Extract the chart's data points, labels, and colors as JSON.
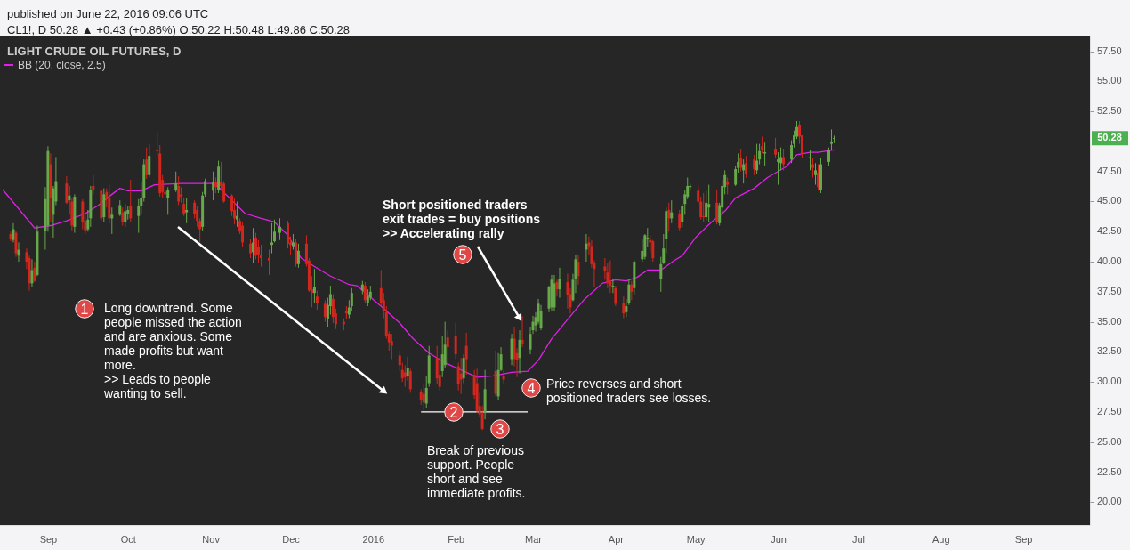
{
  "chart_data": {
    "type": "candlestick",
    "title": "LIGHT CRUDE OIL FUTURES, D",
    "annotations": [
      "published on June 22, 2016 09:06 UTC",
      "CL1!, D  50.28 ▲ +0.43 (+0.86%)  O:50.22  H:50.48  L:49.86  C:50.28",
      "1",
      "Long downtrend. Some\npeople missed the action\nand are anxious. Some\nmade profits but want\nmore.\n>> Leads to people\nwanting to sell.",
      "2",
      "3",
      "Break of previous\nsupport. People\nshort and see\nimmediate profits.",
      "4",
      "Price reverses and short\npositioned traders see losses.",
      {
        "text": "5",
        "x": "2016-02-25",
        "y": 35.3
      },
      "Short positioned traders\nexit trades = buy positions\n>> Accelerating rally",
      {
        "text": "50.28",
        "y": 50.28
      }
    ],
    "colors": [
      "#d3261d",
      "#67a84a",
      "#d3261d",
      "#67a84a",
      "#d3261d",
      "#d3261d",
      "#67a84a",
      "#d3261d",
      "#67a84a",
      "#67a84a",
      "#67a84a",
      "#d3261d",
      "#67a84a",
      "#67a84a",
      "#d3261d",
      "#67a84a",
      "#d3261d",
      "#67a84a",
      "#d3261d",
      "#d3261d",
      "#67a84a",
      "#67a84a",
      "#d3261d",
      "#d3261d",
      "#67a84a",
      "#d3261d",
      "#d3261d",
      "#67a84a",
      "#67a84a",
      "#d3261d",
      "#67a84a",
      "#67a84a",
      "#d3261d",
      "#67a84a",
      "#67a84a",
      "#67a84a",
      "#d3261d",
      "#67a84a",
      "#d3261d",
      "#d3261d",
      "#d3261d",
      "#d3261d",
      "#67a84a",
      "#67a84a",
      "#d3261d",
      "#d3261d",
      "#d3261d",
      "#67a84a",
      "#d3261d",
      "#d3261d",
      "#d3261d",
      "#67a84a",
      "#67a84a",
      "#67a84a",
      "#d3261d",
      "#67a84a",
      "#d3261d",
      "#d3261d",
      "#d3261d",
      "#d3261d",
      "#67a84a",
      "#d3261d",
      "#d3261d",
      "#d3261d",
      "#67a84a",
      "#d3261d",
      "#d3261d",
      "#d3261d",
      "#d3261d",
      "#67a84a",
      "#67a84a",
      "#67a84a",
      "#d3261d",
      "#d3261d",
      "#67a84a",
      "#d3261d",
      "#67a84a",
      "#d3261d",
      "#d3261d",
      "#d3261d",
      "#67a84a",
      "#d3261d",
      "#d3261d",
      "#67a84a",
      "#67a84a",
      "#d3261d",
      "#d3261d",
      "#d3261d",
      "#d3261d",
      "#67a84a",
      "#67a84a",
      "#67a84a",
      "#d3261d",
      "#67a84a",
      "#67a84a",
      "#d3261d",
      "#d3261d",
      "#d3261d",
      "#d3261d",
      "#d3261d",
      "#d3261d",
      "#d3261d",
      "#d3261d",
      "#67a84a",
      "#d3261d",
      "#d3261d",
      "#d3261d",
      "#67a84a",
      "#67a84a",
      "#d3261d",
      "#d3261d",
      "#67a84a",
      "#67a84a",
      "#d3261d",
      "#d3261d",
      "#d3261d",
      "#d3261d",
      "#67a84a",
      "#d3261d",
      "#d3261d",
      "#d3261d",
      "#d3261d",
      "#d3261d",
      "#67a84a",
      "#d3261d",
      "#67a84a",
      "#67a84a",
      "#d3261d",
      "#67a84a",
      "#d3261d",
      "#d3261d",
      "#67a84a",
      "#d3261d",
      "#67a84a",
      "#67a84a",
      "#67a84a",
      "#67a84a",
      "#67a84a",
      "#67a84a",
      "#67a84a",
      "#67a84a",
      "#d3261d",
      "#67a84a",
      "#d3261d",
      "#d3261d",
      "#67a84a",
      "#67a84a",
      "#d3261d",
      "#67a84a",
      "#d3261d",
      "#d3261d",
      "#d3261d",
      "#d3261d",
      "#d3261d",
      "#d3261d",
      "#67a84a",
      "#d3261d",
      "#d3261d",
      "#67a84a",
      "#67a84a",
      "#d3261d",
      "#67a84a",
      "#67a84a",
      "#67a84a",
      "#67a84a",
      "#d3261d",
      "#d3261d",
      "#67a84a",
      "#67a84a",
      "#67a84a",
      "#d3261d",
      "#67a84a",
      "#d3261d",
      "#67a84a",
      "#67a84a",
      "#67a84a",
      "#67a84a",
      "#d3261d",
      "#d3261d",
      "#d3261d",
      "#67a84a",
      "#67a84a",
      "#d3261d",
      "#67a84a",
      "#67a84a",
      "#67a84a",
      "#d3261d",
      "#67a84a",
      "#67a84a",
      "#d3261d",
      "#67a84a",
      "#d3261d",
      "#d3261d",
      "#67a84a",
      "#67a84a",
      "#d3261d",
      "#67a84a",
      "#d3261d",
      "#67a84a",
      "#67a84a",
      "#d3261d",
      "#67a84a",
      "#67a84a",
      "#67a84a",
      "#d3261d",
      "#d3261d",
      "#67a84a",
      "#d3261d",
      "#67a84a",
      "#d3261d",
      "#67a84a",
      "#67a84a",
      "#67a84a",
      "#67a84a"
    ],
    "x": [
      "2015-08-18",
      "2015-08-19",
      "2015-08-20",
      "2015-08-21",
      "2015-08-24",
      "2015-08-25",
      "2015-08-26",
      "2015-08-27",
      "2015-08-28",
      "2015-08-31",
      "2015-09-01",
      "2015-09-02",
      "2015-09-03",
      "2015-09-04",
      "2015-09-08",
      "2015-09-09",
      "2015-09-10",
      "2015-09-11",
      "2015-09-14",
      "2015-09-15",
      "2015-09-16",
      "2015-09-17",
      "2015-09-18",
      "2015-09-21",
      "2015-09-22",
      "2015-09-23",
      "2015-09-24",
      "2015-09-25",
      "2015-09-28",
      "2015-09-29",
      "2015-09-30",
      "2015-10-01",
      "2015-10-02",
      "2015-10-05",
      "2015-10-06",
      "2015-10-07",
      "2015-10-08",
      "2015-10-09",
      "2015-10-12",
      "2015-10-13",
      "2015-10-14",
      "2015-10-15",
      "2015-10-16",
      "2015-10-19",
      "2015-10-20",
      "2015-10-21",
      "2015-10-22",
      "2015-10-23",
      "2015-10-26",
      "2015-10-27",
      "2015-10-28",
      "2015-10-29",
      "2015-10-30",
      "2015-11-02",
      "2015-11-03",
      "2015-11-04",
      "2015-11-05",
      "2015-11-06",
      "2015-11-09",
      "2015-11-10",
      "2015-11-11",
      "2015-11-12",
      "2015-11-13",
      "2015-11-16",
      "2015-11-17",
      "2015-11-18",
      "2015-11-19",
      "2015-11-20",
      "2015-11-23",
      "2015-11-24",
      "2015-11-25",
      "2015-11-27",
      "2015-11-30",
      "2015-12-01",
      "2015-12-02",
      "2015-12-03",
      "2015-12-04",
      "2015-12-07",
      "2015-12-08",
      "2015-12-09",
      "2015-12-10",
      "2015-12-11",
      "2015-12-14",
      "2015-12-15",
      "2015-12-16",
      "2015-12-17",
      "2015-12-18",
      "2015-12-21",
      "2015-12-22",
      "2015-12-23",
      "2015-12-24",
      "2015-12-28",
      "2015-12-29",
      "2015-12-30",
      "2015-12-31",
      "2016-01-04",
      "2016-01-05",
      "2016-01-06",
      "2016-01-07",
      "2016-01-08",
      "2016-01-11",
      "2016-01-12",
      "2016-01-13",
      "2016-01-14",
      "2016-01-15",
      "2016-01-19",
      "2016-01-20",
      "2016-01-21",
      "2016-01-22",
      "2016-01-25",
      "2016-01-26",
      "2016-01-27",
      "2016-01-28",
      "2016-01-29",
      "2016-02-01",
      "2016-02-02",
      "2016-02-03",
      "2016-02-04",
      "2016-02-05",
      "2016-02-08",
      "2016-02-09",
      "2016-02-10",
      "2016-02-11",
      "2016-02-12",
      "2016-02-16",
      "2016-02-17",
      "2016-02-18",
      "2016-02-19",
      "2016-02-22",
      "2016-02-23",
      "2016-02-24",
      "2016-02-25",
      "2016-02-26",
      "2016-02-29",
      "2016-03-01",
      "2016-03-02",
      "2016-03-03",
      "2016-03-04",
      "2016-03-07",
      "2016-03-08",
      "2016-03-09",
      "2016-03-10",
      "2016-03-11",
      "2016-03-14",
      "2016-03-15",
      "2016-03-16",
      "2016-03-17",
      "2016-03-18",
      "2016-03-21",
      "2016-03-22",
      "2016-03-23",
      "2016-03-24",
      "2016-03-28",
      "2016-03-29",
      "2016-03-30",
      "2016-03-31",
      "2016-04-01",
      "2016-04-04",
      "2016-04-05",
      "2016-04-06",
      "2016-04-07",
      "2016-04-08",
      "2016-04-11",
      "2016-04-12",
      "2016-04-13",
      "2016-04-14",
      "2016-04-15",
      "2016-04-18",
      "2016-04-19",
      "2016-04-20",
      "2016-04-21",
      "2016-04-22",
      "2016-04-25",
      "2016-04-26",
      "2016-04-27",
      "2016-04-28",
      "2016-04-29",
      "2016-05-02",
      "2016-05-03",
      "2016-05-04",
      "2016-05-05",
      "2016-05-06",
      "2016-05-09",
      "2016-05-10",
      "2016-05-11",
      "2016-05-12",
      "2016-05-13",
      "2016-05-16",
      "2016-05-17",
      "2016-05-18",
      "2016-05-19",
      "2016-05-20",
      "2016-05-23",
      "2016-05-24",
      "2016-05-25",
      "2016-05-26",
      "2016-05-27",
      "2016-05-31",
      "2016-06-01",
      "2016-06-02",
      "2016-06-03",
      "2016-06-06",
      "2016-06-07",
      "2016-06-08",
      "2016-06-09",
      "2016-06-10",
      "2016-06-13",
      "2016-06-14",
      "2016-06-15",
      "2016-06-16",
      "2016-06-17",
      "2016-06-20",
      "2016-06-21",
      "2016-06-22"
    ],
    "ohlc": [
      [
        42.3,
        42.5,
        41.7,
        41.9
      ],
      [
        41.8,
        43.2,
        41.6,
        42.7
      ],
      [
        42.4,
        42.6,
        40.4,
        40.7
      ],
      [
        40.5,
        41.6,
        40.0,
        41.0
      ],
      [
        40.8,
        41.1,
        39.4,
        40.0
      ],
      [
        40.3,
        40.5,
        37.6,
        38.2
      ],
      [
        38.2,
        40.2,
        37.9,
        39.3
      ],
      [
        39.5,
        40.0,
        38.3,
        38.4
      ],
      [
        38.9,
        43.0,
        38.8,
        42.5
      ],
      [
        42.6,
        46.2,
        41.0,
        45.2
      ],
      [
        43.0,
        49.6,
        42.5,
        49.2
      ],
      [
        48.1,
        49.0,
        43.3,
        45.3
      ],
      [
        43.9,
        46.3,
        42.0,
        46.1
      ],
      [
        45.0,
        48.7,
        44.7,
        46.7
      ],
      [
        46.5,
        47.1,
        44.8,
        44.9
      ],
      [
        45.1,
        46.3,
        43.9,
        45.5
      ],
      [
        45.0,
        45.3,
        42.6,
        43.0
      ],
      [
        42.9,
        45.6,
        42.4,
        45.4
      ],
      [
        45.0,
        45.2,
        42.7,
        43.3
      ],
      [
        43.4,
        43.9,
        42.3,
        42.6
      ],
      [
        42.7,
        44.3,
        42.5,
        43.5
      ],
      [
        43.6,
        46.3,
        42.9,
        46.0
      ],
      [
        46.3,
        47.2,
        45.6,
        46.0
      ],
      [
        45.9,
        46.0,
        43.4,
        43.6
      ],
      [
        43.7,
        46.1,
        43.3,
        45.6
      ],
      [
        45.8,
        46.1,
        44.5,
        45.2
      ],
      [
        45.3,
        46.4,
        43.2,
        43.6
      ],
      [
        43.6,
        44.5,
        42.3,
        43.9
      ],
      [
        43.9,
        45.1,
        43.8,
        44.7
      ],
      [
        44.1,
        44.5,
        43.0,
        43.3
      ],
      [
        43.3,
        44.8,
        42.9,
        44.2
      ],
      [
        44.0,
        44.6,
        43.5,
        44.3
      ],
      [
        44.6,
        46.8,
        43.3,
        43.6
      ],
      [
        43.8,
        45.2,
        42.4,
        44.6
      ],
      [
        44.6,
        46.6,
        44.0,
        45.3
      ],
      [
        45.3,
        48.5,
        45.0,
        48.1
      ],
      [
        48.5,
        49.5,
        46.9,
        47.2
      ],
      [
        47.2,
        49.8,
        47.0,
        48.8
      ],
      [
        49.3,
        50.8,
        48.8,
        49.2
      ],
      [
        49.0,
        49.7,
        45.4,
        45.7
      ],
      [
        46.8,
        47.2,
        45.3,
        45.8
      ],
      [
        45.8,
        46.0,
        45.1,
        45.6
      ],
      [
        45.3,
        46.2,
        43.9,
        46.0
      ],
      [
        46.0,
        47.5,
        45.8,
        46.5
      ],
      [
        46.3,
        47.1,
        44.7,
        45.0
      ],
      [
        45.6,
        46.2,
        44.9,
        45.4
      ],
      [
        44.8,
        45.3,
        43.8,
        44.0
      ],
      [
        44.1,
        45.3,
        43.2,
        44.3
      ],
      [
        44.9,
        45.1,
        43.6,
        44.0
      ],
      [
        44.3,
        44.6,
        42.9,
        43.4
      ],
      [
        43.4,
        43.6,
        41.6,
        42.7
      ],
      [
        42.9,
        45.8,
        42.6,
        45.5
      ],
      [
        45.6,
        46.9,
        45.4,
        46.7
      ],
      [
        45.9,
        47.5,
        45.1,
        46.6
      ],
      [
        46.6,
        47.0,
        45.7,
        46.2
      ],
      [
        46.0,
        48.4,
        45.7,
        47.9
      ],
      [
        46.6,
        48.3,
        45.9,
        46.3
      ],
      [
        46.5,
        46.7,
        44.9,
        45.0
      ],
      [
        45.5,
        45.6,
        43.8,
        44.2
      ],
      [
        44.3,
        45.3,
        43.1,
        43.6
      ],
      [
        43.5,
        45.0,
        42.9,
        43.8
      ],
      [
        43.4,
        43.6,
        42.3,
        42.5
      ],
      [
        43.0,
        43.3,
        41.2,
        41.6
      ],
      [
        41.5,
        41.9,
        40.3,
        40.7
      ],
      [
        40.8,
        42.8,
        39.9,
        41.6
      ],
      [
        42.0,
        42.4,
        40.2,
        40.5
      ],
      [
        41.2,
        41.8,
        39.9,
        40.6
      ],
      [
        40.6,
        41.4,
        39.6,
        40.3
      ],
      [
        40.3,
        41.0,
        38.9,
        40.1
      ],
      [
        41.4,
        43.2,
        40.7,
        41.6
      ],
      [
        41.7,
        43.5,
        41.6,
        42.5
      ],
      [
        42.4,
        43.6,
        41.8,
        42.9
      ],
      [
        43.2,
        43.4,
        41.1,
        41.5
      ],
      [
        41.6,
        42.1,
        40.6,
        41.4
      ],
      [
        41.3,
        42.3,
        41.0,
        41.6
      ],
      [
        41.6,
        41.9,
        39.6,
        39.8
      ],
      [
        39.8,
        41.5,
        39.5,
        40.9
      ],
      [
        41.5,
        42.2,
        39.6,
        39.8
      ],
      [
        40.1,
        40.3,
        37.5,
        37.6
      ],
      [
        37.7,
        38.8,
        36.2,
        37.4
      ],
      [
        37.4,
        39.4,
        36.6,
        37.9
      ],
      [
        37.1,
        37.6,
        36.0,
        36.6
      ],
      [
        36.5,
        36.8,
        35.0,
        35.4
      ],
      [
        35.2,
        37.0,
        34.6,
        36.4
      ],
      [
        36.3,
        38.0,
        35.6,
        37.3
      ],
      [
        36.9,
        37.3,
        34.9,
        35.4
      ],
      [
        35.7,
        36.1,
        34.4,
        34.8
      ],
      [
        35.0,
        35.3,
        34.3,
        34.8
      ],
      [
        35.9,
        36.3,
        35.2,
        35.7
      ],
      [
        35.6,
        36.8,
        35.3,
        36.2
      ],
      [
        36.3,
        37.8,
        35.9,
        37.4
      ],
      [
        37.6,
        38.4,
        37.3,
        38.1
      ],
      [
        38.0,
        38.3,
        36.6,
        36.8
      ],
      [
        36.6,
        37.7,
        36.3,
        37.1
      ],
      [
        37.0,
        38.0,
        36.8,
        37.5
      ],
      [
        37.8,
        39.3,
        36.3,
        36.6
      ],
      [
        36.8,
        37.4,
        35.3,
        35.9
      ],
      [
        35.8,
        36.3,
        33.6,
        33.8
      ],
      [
        34.0,
        34.2,
        32.6,
        33.3
      ],
      [
        33.4,
        34.0,
        31.9,
        33.0
      ],
      [
        32.2,
        32.6,
        30.9,
        31.4
      ],
      [
        31.0,
        31.6,
        30.0,
        30.3
      ],
      [
        30.8,
        31.4,
        29.6,
        30.4
      ],
      [
        30.5,
        32.1,
        30.1,
        31.2
      ],
      [
        30.9,
        31.1,
        29.1,
        29.4
      ],
      [
        29.2,
        29.4,
        28.1,
        28.5
      ],
      [
        29.0,
        29.9,
        27.6,
        28.3
      ],
      [
        28.2,
        30.5,
        27.8,
        29.5
      ],
      [
        29.9,
        33.0,
        29.6,
        32.2
      ],
      [
        32.0,
        33.0,
        29.8,
        30.3
      ],
      [
        30.6,
        32.0,
        29.3,
        29.6
      ],
      [
        30.9,
        33.8,
        30.4,
        32.3
      ],
      [
        31.4,
        35.0,
        31.2,
        33.1
      ],
      [
        33.7,
        34.3,
        31.3,
        32.9
      ],
      [
        33.8,
        34.9,
        31.9,
        32.3
      ],
      [
        31.3,
        31.6,
        29.3,
        29.8
      ],
      [
        30.7,
        32.0,
        29.0,
        30.2
      ],
      [
        30.3,
        32.3,
        29.9,
        32.0
      ],
      [
        33.0,
        34.1,
        30.6,
        31.9
      ],
      [
        30.6,
        31.0,
        28.6,
        28.9
      ],
      [
        29.9,
        31.1,
        27.4,
        27.6
      ],
      [
        28.0,
        29.1,
        27.1,
        27.3
      ],
      [
        27.4,
        28.0,
        26.0,
        26.1
      ],
      [
        27.5,
        31.0,
        26.9,
        29.4
      ],
      [
        30.9,
        32.6,
        28.8,
        29.0
      ],
      [
        28.8,
        32.4,
        28.5,
        31.0
      ],
      [
        31.0,
        32.9,
        30.9,
        32.3
      ],
      [
        30.5,
        31.0,
        29.9,
        30.2
      ],
      [
        31.9,
        34.0,
        31.4,
        33.6
      ],
      [
        33.6,
        34.6,
        31.3,
        31.9
      ],
      [
        32.4,
        32.8,
        30.4,
        31.8
      ],
      [
        32.0,
        34.3,
        30.7,
        33.5
      ],
      [
        33.5,
        35.5,
        32.9,
        33.2
      ],
      [
        32.7,
        34.6,
        32.3,
        34.0
      ],
      [
        34.3,
        35.5,
        34.0,
        35.0
      ],
      [
        34.7,
        35.8,
        34.2,
        35.4
      ],
      [
        35.0,
        36.9,
        34.8,
        36.5
      ],
      [
        34.5,
        36.4,
        34.3,
        35.9
      ],
      [
        36.1,
        38.0,
        35.8,
        37.9
      ],
      [
        36.2,
        38.9,
        35.9,
        38.5
      ],
      [
        36.2,
        38.9,
        35.9,
        38.2
      ],
      [
        38.3,
        38.5,
        37.1,
        37.7
      ],
      [
        37.7,
        39.5,
        37.0,
        38.6
      ],
      [
        38.3,
        39.0,
        36.1,
        37.2
      ],
      [
        37.3,
        37.8,
        35.7,
        36.2
      ],
      [
        36.8,
        39.0,
        36.7,
        38.5
      ],
      [
        38.6,
        40.6,
        37.4,
        40.2
      ],
      [
        40.0,
        40.6,
        38.1,
        38.8
      ],
      [
        41.0,
        42.3,
        40.0,
        41.5
      ],
      [
        41.6,
        42.1,
        40.6,
        41.3
      ],
      [
        41.3,
        41.8,
        39.5,
        39.8
      ],
      [
        39.9,
        40.1,
        37.9,
        39.4
      ],
      [
        39.6,
        40.3,
        38.5,
        39.2
      ],
      [
        39.1,
        39.9,
        37.8,
        38.2
      ],
      [
        38.3,
        40.1,
        37.4,
        38.0
      ],
      [
        37.9,
        38.6,
        37.4,
        38.0
      ],
      [
        37.8,
        38.0,
        36.3,
        36.5
      ],
      [
        36.6,
        37.1,
        35.3,
        35.7
      ],
      [
        35.8,
        36.9,
        35.4,
        36.3
      ],
      [
        36.6,
        38.5,
        36.4,
        38.1
      ],
      [
        38.1,
        38.4,
        36.8,
        37.5
      ],
      [
        37.8,
        40.1,
        37.3,
        40.0
      ],
      [
        40.2,
        41.9,
        40.0,
        40.9
      ],
      [
        40.4,
        42.3,
        40.2,
        42.2
      ],
      [
        41.9,
        42.8,
        41.2,
        42.0
      ],
      [
        41.8,
        42.2,
        40.8,
        41.6
      ],
      [
        41.7,
        41.8,
        40.0,
        40.3
      ],
      [
        38.6,
        40.4,
        37.5,
        39.8
      ],
      [
        39.9,
        42.3,
        39.8,
        41.1
      ],
      [
        41.9,
        44.5,
        40.7,
        44.2
      ],
      [
        44.3,
        44.9,
        42.5,
        43.6
      ],
      [
        43.6,
        45.1,
        43.2,
        44.1
      ],
      [
        44.0,
        44.3,
        42.6,
        42.8
      ],
      [
        43.3,
        44.8,
        42.9,
        44.6
      ],
      [
        44.8,
        46.0,
        43.9,
        45.6
      ],
      [
        45.4,
        47.0,
        45.2,
        46.3
      ],
      [
        46.2,
        46.5,
        45.9,
        46.3
      ],
      [
        45.9,
        46.3,
        44.8,
        45.0
      ],
      [
        45.0,
        45.4,
        43.5,
        43.7
      ],
      [
        43.8,
        45.7,
        43.3,
        43.7
      ],
      [
        43.7,
        45.9,
        43.4,
        44.9
      ],
      [
        44.5,
        46.4,
        43.3,
        44.8
      ],
      [
        44.9,
        46.0,
        43.1,
        43.3
      ],
      [
        43.2,
        44.9,
        43.0,
        44.7
      ],
      [
        44.5,
        46.8,
        43.9,
        46.3
      ],
      [
        46.2,
        47.6,
        45.6,
        47.2
      ],
      [
        46.6,
        47.0,
        45.6,
        46.4
      ],
      [
        46.4,
        48.0,
        46.3,
        47.7
      ],
      [
        47.8,
        49.0,
        47.4,
        48.3
      ],
      [
        48.6,
        49.4,
        47.5,
        47.8
      ],
      [
        47.6,
        48.5,
        46.5,
        48.1
      ],
      [
        48.2,
        48.8,
        47.0,
        47.3
      ],
      [
        48.5,
        48.9,
        47.2,
        47.7
      ],
      [
        47.6,
        49.8,
        47.3,
        48.4
      ],
      [
        48.5,
        49.8,
        48.1,
        49.2
      ],
      [
        49.6,
        50.4,
        49.0,
        49.3
      ],
      [
        49.0,
        49.9,
        48.0,
        49.1
      ],
      [
        49.4,
        50.3,
        48.6,
        48.9
      ],
      [
        48.3,
        49.1,
        46.4,
        48.5
      ],
      [
        48.2,
        49.5,
        47.6,
        48.7
      ],
      [
        48.7,
        49.4,
        47.6,
        48.1
      ],
      [
        48.5,
        50.1,
        48.2,
        49.7
      ],
      [
        49.8,
        50.9,
        49.5,
        50.5
      ],
      [
        50.4,
        51.7,
        50.2,
        51.2
      ],
      [
        51.4,
        51.7,
        49.8,
        50.4
      ],
      [
        50.5,
        50.5,
        48.6,
        48.9
      ],
      [
        48.6,
        49.3,
        47.6,
        48.7
      ],
      [
        48.1,
        48.6,
        47.0,
        47.8
      ],
      [
        47.2,
        48.2,
        46.4,
        47.6
      ],
      [
        47.4,
        48.1,
        45.9,
        46.2
      ],
      [
        46.0,
        48.6,
        45.7,
        48.1
      ],
      [
        48.3,
        49.5,
        48.0,
        49.3
      ],
      [
        49.8,
        51.0,
        49.3,
        50.0
      ],
      [
        50.22,
        50.48,
        49.86,
        50.28
      ]
    ],
    "series": [
      {
        "name": "BB (20, close, 2.5)",
        "type": "line",
        "color": "#e020e8",
        "x": [
          "2015-08-15",
          "2015-08-27",
          "2015-09-02",
          "2015-09-08",
          "2015-09-15",
          "2015-09-20",
          "2015-09-25",
          "2015-09-28",
          "2015-10-01",
          "2015-10-06",
          "2015-10-11",
          "2015-10-21",
          "2015-11-02",
          "2015-11-04",
          "2015-11-09",
          "2015-11-14",
          "2015-11-20",
          "2015-11-25",
          "2015-11-30",
          "2015-12-05",
          "2015-12-10",
          "2015-12-16",
          "2015-12-23",
          "2015-12-26",
          "2016-01-05",
          "2016-01-11",
          "2016-01-16",
          "2016-01-22",
          "2016-01-28",
          "2016-02-03",
          "2016-02-09",
          "2016-02-15",
          "2016-02-22",
          "2016-02-28",
          "2016-03-03",
          "2016-03-08",
          "2016-03-20",
          "2016-03-27",
          "2016-04-01",
          "2016-04-05",
          "2016-04-09",
          "2016-04-13",
          "2016-04-18",
          "2016-04-23",
          "2016-04-26",
          "2016-05-01",
          "2016-05-07",
          "2016-05-12",
          "2016-05-16",
          "2016-05-23",
          "2016-05-28",
          "2016-06-04",
          "2016-06-08",
          "2016-06-13",
          "2016-06-16",
          "2016-06-22"
        ],
        "values": [
          46.0,
          42.8,
          43.0,
          43.4,
          44.0,
          44.7,
          45.6,
          46.1,
          45.9,
          45.9,
          46.4,
          46.5,
          46.5,
          46.2,
          45.1,
          44.0,
          43.6,
          43.3,
          42.2,
          40.3,
          39.6,
          38.8,
          38.1,
          38.0,
          36.1,
          34.9,
          33.6,
          32.4,
          31.6,
          31.0,
          30.4,
          30.5,
          30.8,
          30.9,
          31.8,
          33.6,
          36.8,
          38.2,
          38.5,
          38.4,
          38.7,
          39.3,
          39.3,
          40.1,
          40.5,
          42.0,
          43.3,
          44.2,
          45.3,
          46.1,
          47.0,
          47.9,
          48.9,
          49.1,
          49.1,
          49.3
        ]
      },
      {
        "type": "line",
        "color": "#ffffff",
        "x": [
          "2016-01-19",
          "2016-02-28"
        ],
        "values": [
          27.5,
          27.5
        ]
      }
    ],
    "xlim": [
      "2015-08-14",
      "2016-09-26"
    ],
    "xticks": [
      {
        "value": "2015-09-01",
        "label": "Sep"
      },
      {
        "value": "2015-10-01",
        "label": "Oct"
      },
      {
        "value": "2015-11-01",
        "label": "Nov"
      },
      {
        "value": "2015-12-01",
        "label": "Dec"
      },
      {
        "value": "2016-01-01",
        "label": "2016"
      },
      {
        "value": "2016-02-01",
        "label": "Feb"
      },
      {
        "value": "2016-03-01",
        "label": "Mar"
      },
      {
        "value": "2016-04-01",
        "label": "Apr"
      },
      {
        "value": "2016-05-01",
        "label": "May"
      },
      {
        "value": "2016-06-01",
        "label": "Jun"
      },
      {
        "value": "2016-07-01",
        "label": "Jul"
      },
      {
        "value": "2016-08-01",
        "label": "Aug"
      },
      {
        "value": "2016-09-01",
        "label": "Sep"
      }
    ],
    "ylim": [
      18.1,
      58.8
    ],
    "yticks": [
      {
        "value": 20,
        "label": "20.00"
      },
      {
        "value": 22.5,
        "label": "22.50"
      },
      {
        "value": 25,
        "label": "25.00"
      },
      {
        "value": 27.5,
        "label": "27.50"
      },
      {
        "value": 30,
        "label": "30.00"
      },
      {
        "value": 32.5,
        "label": "32.50"
      },
      {
        "value": 35,
        "label": "35.00"
      },
      {
        "value": 37.5,
        "label": "37.50"
      },
      {
        "value": 40,
        "label": "40.00"
      },
      {
        "value": 42.5,
        "label": "42.50"
      },
      {
        "value": 45,
        "label": "45.00"
      },
      {
        "value": 47.5,
        "label": "47.50"
      },
      {
        "value": 52.5,
        "label": "52.50"
      },
      {
        "value": 55,
        "label": "55.00"
      },
      {
        "value": 57.5,
        "label": "57.50"
      }
    ],
    "grid": false,
    "legend": "top left",
    "line_style": "solid"
  }
}
